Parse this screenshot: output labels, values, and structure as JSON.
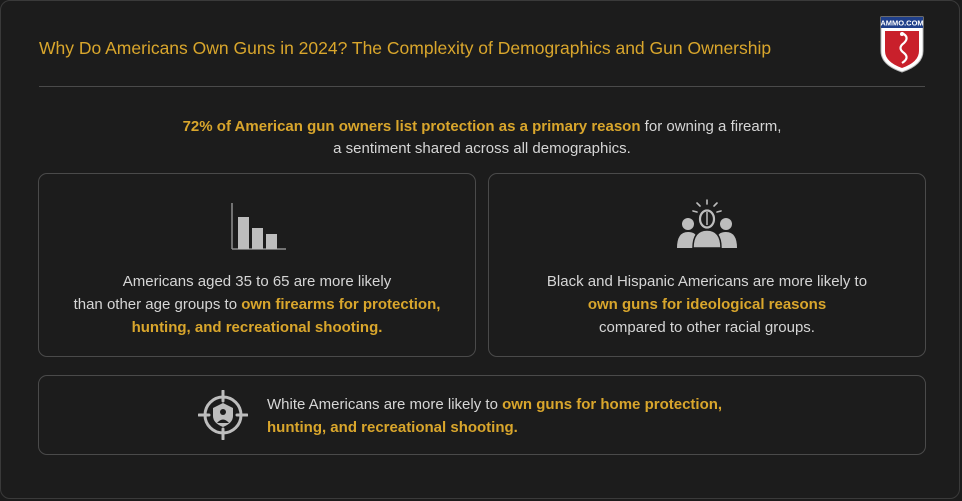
{
  "header": {
    "title": "Why Do Americans Own Guns in 2024? The Complexity of Demographics and Gun Ownership",
    "logo_text": "AMMO.COM"
  },
  "intro": {
    "highlight": "72% of American gun owners list protection as a primary reason",
    "rest": " for owning a firearm,",
    "line2": "a sentiment shared across all demographics."
  },
  "cards": {
    "age": {
      "icon": "bar-chart-icon",
      "line1": "Americans aged 35 to 65 are more likely",
      "line2_plain": "than other age groups to ",
      "line2_highlight": "own firearms for protection,",
      "line3_highlight": "hunting, and recreational shooting."
    },
    "race": {
      "icon": "group-people-icon",
      "line1": "Black and Hispanic Americans are more likely to",
      "line2_highlight": "own guns for ideological reasons",
      "line3": "compared to other racial groups."
    },
    "white": {
      "icon": "target-crosshair-icon",
      "line1_plain": "White Americans are more likely to ",
      "line1_highlight": "own guns for home protection,",
      "line2_highlight": "hunting, and recreational shooting."
    }
  },
  "colors": {
    "accent": "#d9a62c",
    "text": "#d6d6d6",
    "background": "#1c1c1c",
    "border": "#4a4a4a"
  }
}
